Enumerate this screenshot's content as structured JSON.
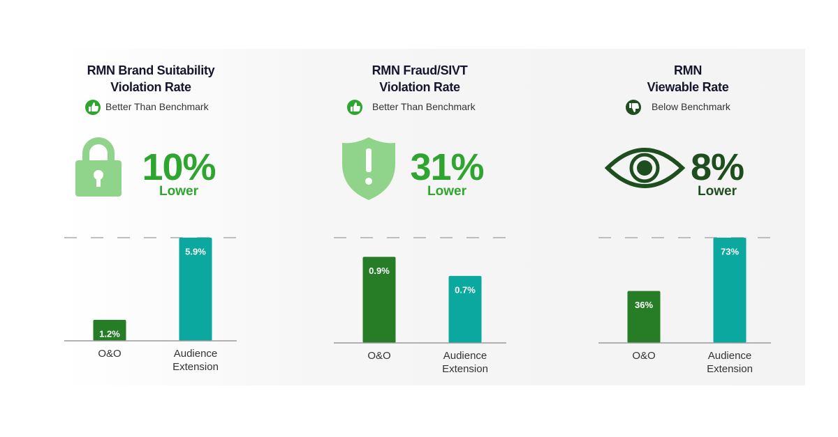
{
  "chart_data": [
    {
      "type": "bar",
      "title": "RMN Brand Suitability\nViolation Rate",
      "badge": "Better Than Benchmark",
      "stat": "10%",
      "stat_label": "Lower",
      "stat_color": "#2ea52e",
      "categories": [
        "O&O",
        "Audience\nExtension"
      ],
      "values": [
        1.2,
        5.9
      ],
      "value_labels": [
        "1.2%",
        "5.9%"
      ],
      "colors": [
        "#267d26",
        "#0aa89e"
      ],
      "ylim": [
        0,
        5.9
      ]
    },
    {
      "type": "bar",
      "title": "RMN Fraud/SIVT\nViolation Rate",
      "badge": "Better Than Benchmark",
      "stat": "31%",
      "stat_label": "Lower",
      "stat_color": "#2ea52e",
      "categories": [
        "O&O",
        "Audience\nExtension"
      ],
      "values": [
        0.9,
        0.7
      ],
      "value_labels": [
        "0.9%",
        "0.7%"
      ],
      "colors": [
        "#267d26",
        "#0aa89e"
      ],
      "ylim": [
        0,
        1.1
      ]
    },
    {
      "type": "bar",
      "title": "RMN\nViewable Rate",
      "badge": "Below Benchmark",
      "stat": "8%",
      "stat_label": "Lower",
      "stat_color": "#1e4d1e",
      "categories": [
        "O&O",
        "Audience\nExtension"
      ],
      "values": [
        36,
        73
      ],
      "value_labels": [
        "36%",
        "73%"
      ],
      "colors": [
        "#267d26",
        "#0aa89e"
      ],
      "ylim": [
        0,
        73
      ]
    }
  ]
}
